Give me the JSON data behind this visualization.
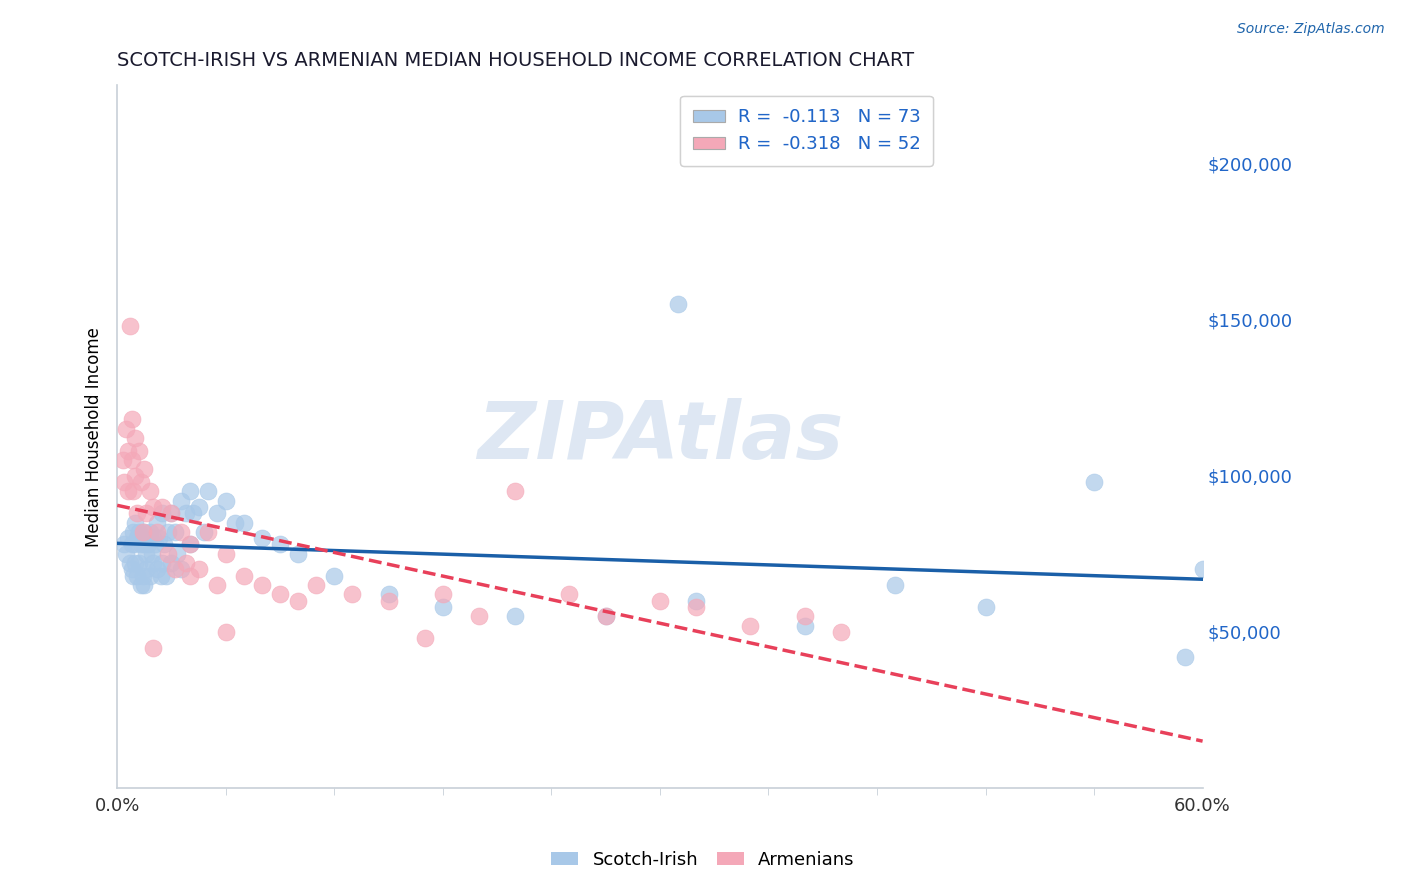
{
  "title": "SCOTCH-IRISH VS ARMENIAN MEDIAN HOUSEHOLD INCOME CORRELATION CHART",
  "source": "Source: ZipAtlas.com",
  "ylabel": "Median Household Income",
  "xlim": [
    0.0,
    0.6
  ],
  "ylim": [
    0,
    225000
  ],
  "yticks": [
    50000,
    100000,
    150000,
    200000
  ],
  "ytick_labels": [
    "$50,000",
    "$100,000",
    "$150,000",
    "$200,000"
  ],
  "xtick_positions": [
    0.0,
    0.6
  ],
  "xtick_labels": [
    "0.0%",
    "60.0%"
  ],
  "watermark": "ZIPAtlas",
  "legend_blue_text": "R =  -0.113   N = 73",
  "legend_pink_text": "R =  -0.318   N = 52",
  "series_blue_label": "Scotch-Irish",
  "series_pink_label": "Armenians",
  "blue_scatter_color": "#a8c8e8",
  "pink_scatter_color": "#f4a8b8",
  "blue_line_color": "#1a5fa8",
  "pink_line_color": "#e8405a",
  "grid_color": "#b8c8d8",
  "axis_spine_color": "#c8d0d8",
  "title_color": "#1a1a2e",
  "ytick_color": "#2166c8",
  "xtick_color": "#333333",
  "watermark_color": "#c8d8ec",
  "source_color": "#2166ac",
  "background_color": "#ffffff",
  "scotch_irish_x": [
    0.004,
    0.005,
    0.006,
    0.007,
    0.008,
    0.008,
    0.009,
    0.009,
    0.01,
    0.01,
    0.01,
    0.011,
    0.011,
    0.012,
    0.012,
    0.013,
    0.013,
    0.014,
    0.014,
    0.015,
    0.015,
    0.015,
    0.016,
    0.016,
    0.017,
    0.018,
    0.018,
    0.019,
    0.02,
    0.02,
    0.021,
    0.022,
    0.022,
    0.023,
    0.024,
    0.025,
    0.025,
    0.026,
    0.027,
    0.028,
    0.03,
    0.03,
    0.032,
    0.033,
    0.035,
    0.035,
    0.038,
    0.04,
    0.04,
    0.042,
    0.045,
    0.048,
    0.05,
    0.055,
    0.06,
    0.065,
    0.07,
    0.08,
    0.09,
    0.1,
    0.12,
    0.15,
    0.18,
    0.22,
    0.27,
    0.32,
    0.38,
    0.43,
    0.48,
    0.54,
    0.59,
    0.6,
    0.31
  ],
  "scotch_irish_y": [
    78000,
    75000,
    80000,
    72000,
    78000,
    70000,
    82000,
    68000,
    85000,
    78000,
    72000,
    80000,
    68000,
    82000,
    72000,
    78000,
    65000,
    80000,
    68000,
    82000,
    78000,
    65000,
    75000,
    70000,
    78000,
    82000,
    68000,
    75000,
    80000,
    72000,
    78000,
    85000,
    70000,
    80000,
    68000,
    88000,
    72000,
    78000,
    68000,
    82000,
    88000,
    72000,
    82000,
    75000,
    92000,
    70000,
    88000,
    95000,
    78000,
    88000,
    90000,
    82000,
    95000,
    88000,
    92000,
    85000,
    85000,
    80000,
    78000,
    75000,
    68000,
    62000,
    58000,
    55000,
    55000,
    60000,
    52000,
    65000,
    58000,
    98000,
    42000,
    70000,
    155000
  ],
  "armenian_x": [
    0.003,
    0.004,
    0.005,
    0.006,
    0.006,
    0.007,
    0.008,
    0.008,
    0.009,
    0.01,
    0.01,
    0.011,
    0.012,
    0.013,
    0.014,
    0.015,
    0.016,
    0.018,
    0.02,
    0.022,
    0.025,
    0.028,
    0.03,
    0.032,
    0.035,
    0.038,
    0.04,
    0.045,
    0.05,
    0.055,
    0.06,
    0.07,
    0.08,
    0.09,
    0.1,
    0.11,
    0.13,
    0.15,
    0.18,
    0.2,
    0.22,
    0.25,
    0.27,
    0.3,
    0.32,
    0.35,
    0.38,
    0.4,
    0.17,
    0.06,
    0.02,
    0.04
  ],
  "armenian_y": [
    105000,
    98000,
    115000,
    108000,
    95000,
    148000,
    118000,
    105000,
    95000,
    112000,
    100000,
    88000,
    108000,
    98000,
    82000,
    102000,
    88000,
    95000,
    90000,
    82000,
    90000,
    75000,
    88000,
    70000,
    82000,
    72000,
    78000,
    70000,
    82000,
    65000,
    75000,
    68000,
    65000,
    62000,
    60000,
    65000,
    62000,
    60000,
    62000,
    55000,
    95000,
    62000,
    55000,
    60000,
    58000,
    52000,
    55000,
    50000,
    48000,
    50000,
    45000,
    68000
  ]
}
